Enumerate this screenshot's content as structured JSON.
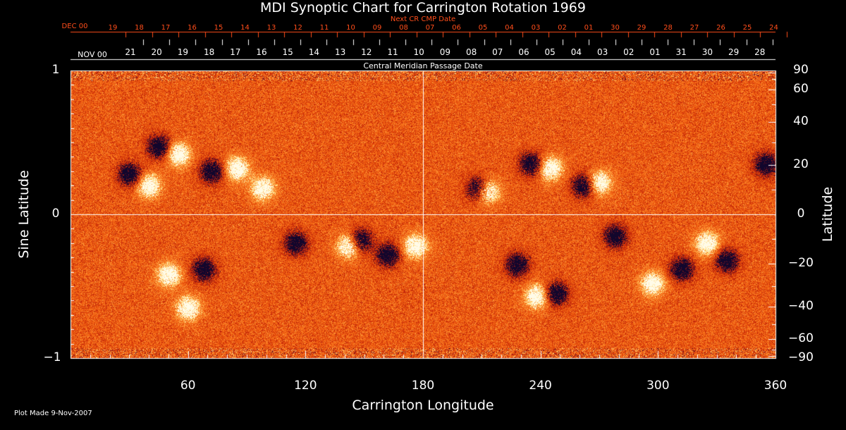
{
  "colors": {
    "background": "#000000",
    "text": "#ffffff",
    "top_axis": "#ff4d1a",
    "palette": [
      "#12062c",
      "#6e1220",
      "#c2280a",
      "#e34a0c",
      "#f6701a",
      "#fc9a3a",
      "#ffe08c",
      "#fffbe8"
    ]
  },
  "chart_data": {
    "type": "heatmap",
    "title": "MDI Synoptic Chart for Carrington Rotation 1969",
    "xlabel": "Carrington Longitude",
    "ylabel_left": "Sine Latitude",
    "ylabel_right": "Latitude",
    "xlim": [
      0,
      360
    ],
    "ylim": [
      -1,
      1
    ],
    "x_ticks": [
      60,
      120,
      180,
      240,
      300,
      360
    ],
    "y_ticks_left": [
      1,
      0,
      -1
    ],
    "y_ticks_right": [
      90,
      60,
      40,
      20,
      0,
      -20,
      -40,
      -60,
      -90
    ],
    "grid": "lines at longitude 180 and sine latitude 0",
    "top_axis_next": {
      "label": "Next CR CMP Date",
      "month": "DEC 00",
      "dates": [
        "19",
        "18",
        "17",
        "16",
        "15",
        "14",
        "13",
        "12",
        "11",
        "10",
        "09",
        "08",
        "07",
        "06",
        "05",
        "04",
        "03",
        "02",
        "01",
        "30",
        "29",
        "28",
        "27",
        "26",
        "25",
        "24"
      ]
    },
    "top_axis_cmp": {
      "label": "Central Meridian Passage Date",
      "month": "NOV 00",
      "dates": [
        "21",
        "20",
        "19",
        "18",
        "17",
        "16",
        "15",
        "14",
        "13",
        "12",
        "11",
        "10",
        "09",
        "08",
        "07",
        "06",
        "05",
        "04",
        "03",
        "02",
        "01",
        "31",
        "30",
        "29",
        "28"
      ]
    },
    "active_regions": [
      {
        "lon": 30,
        "sinlat": 0.28,
        "polarity": "negative"
      },
      {
        "lon": 40,
        "sinlat": 0.2,
        "polarity": "positive"
      },
      {
        "lon": 45,
        "sinlat": 0.47,
        "polarity": "negative"
      },
      {
        "lon": 55,
        "sinlat": 0.42,
        "polarity": "positive"
      },
      {
        "lon": 72,
        "sinlat": 0.3,
        "polarity": "negative"
      },
      {
        "lon": 85,
        "sinlat": 0.32,
        "polarity": "positive"
      },
      {
        "lon": 98,
        "sinlat": 0.18,
        "polarity": "positive"
      },
      {
        "lon": 50,
        "sinlat": -0.42,
        "polarity": "positive"
      },
      {
        "lon": 68,
        "sinlat": -0.38,
        "polarity": "negative"
      },
      {
        "lon": 148,
        "sinlat": -0.18,
        "polarity": "negative"
      },
      {
        "lon": 142,
        "sinlat": -0.22,
        "polarity": "positive"
      },
      {
        "lon": 162,
        "sinlat": -0.28,
        "polarity": "negative"
      },
      {
        "lon": 176,
        "sinlat": -0.22,
        "polarity": "positive"
      },
      {
        "lon": 208,
        "sinlat": 0.18,
        "polarity": "negative"
      },
      {
        "lon": 213,
        "sinlat": 0.16,
        "polarity": "positive"
      },
      {
        "lon": 235,
        "sinlat": 0.35,
        "polarity": "negative"
      },
      {
        "lon": 245,
        "sinlat": 0.32,
        "polarity": "positive"
      },
      {
        "lon": 262,
        "sinlat": 0.2,
        "polarity": "negative"
      },
      {
        "lon": 270,
        "sinlat": 0.22,
        "polarity": "positive"
      },
      {
        "lon": 278,
        "sinlat": -0.15,
        "polarity": "negative"
      },
      {
        "lon": 312,
        "sinlat": -0.38,
        "polarity": "negative"
      },
      {
        "lon": 297,
        "sinlat": -0.48,
        "polarity": "positive"
      },
      {
        "lon": 335,
        "sinlat": -0.32,
        "polarity": "negative"
      },
      {
        "lon": 355,
        "sinlat": 0.35,
        "polarity": "negative"
      },
      {
        "lon": 248,
        "sinlat": -0.55,
        "polarity": "negative"
      },
      {
        "lon": 238,
        "sinlat": -0.57,
        "polarity": "positive"
      },
      {
        "lon": 228,
        "sinlat": -0.35,
        "polarity": "negative"
      },
      {
        "lon": 115,
        "sinlat": -0.2,
        "polarity": "negative"
      },
      {
        "lon": 325,
        "sinlat": -0.2,
        "polarity": "positive"
      },
      {
        "lon": 60,
        "sinlat": -0.65,
        "polarity": "positive"
      }
    ]
  },
  "footer": {
    "plot_made": "Plot Made  9-Nov-2007"
  }
}
